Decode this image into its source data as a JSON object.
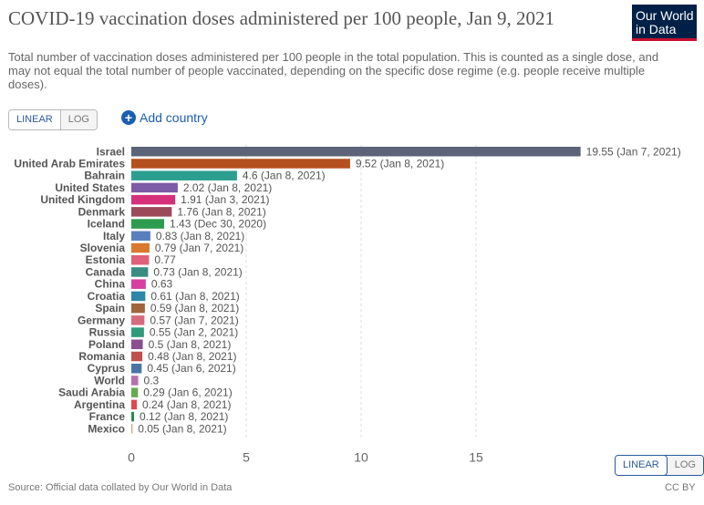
{
  "header": {
    "title": "COVID-19 vaccination doses administered per 100 people, Jan 9, 2021",
    "subtitle": "Total number of vaccination doses administered per 100 people in the total population. This is counted as a single dose, and may not equal the total number of people vaccinated, depending on the specific dose regime (e.g. people receive multiple doses).",
    "logo_line1": "Our World",
    "logo_line2": "in Data"
  },
  "controls": {
    "linear_label": "LINEAR",
    "log_label": "LOG",
    "add_country_label": "Add country",
    "plus_symbol": "+"
  },
  "footer": {
    "source": "Source: Official data collated by Our World in Data",
    "license": "CC BY"
  },
  "chart_data": {
    "type": "bar",
    "orientation": "horizontal",
    "xlim": [
      0,
      20
    ],
    "x_ticks": [
      0,
      5,
      10,
      15
    ],
    "grid": "vertical dashed",
    "bars": [
      {
        "label": "Israel",
        "value": 19.55,
        "annotation": "19.55 (Jan 7, 2021)",
        "color": "#5b6478"
      },
      {
        "label": "United Arab Emirates",
        "value": 9.52,
        "annotation": "9.52 (Jan 8, 2021)",
        "color": "#b5501f"
      },
      {
        "label": "Bahrain",
        "value": 4.6,
        "annotation": "4.6 (Jan 8, 2021)",
        "color": "#2b9e8f"
      },
      {
        "label": "United States",
        "value": 2.02,
        "annotation": "2.02 (Jan 8, 2021)",
        "color": "#7d5ba6"
      },
      {
        "label": "United Kingdom",
        "value": 1.91,
        "annotation": "1.91 (Jan 3, 2021)",
        "color": "#d6307b"
      },
      {
        "label": "Denmark",
        "value": 1.76,
        "annotation": "1.76 (Jan 8, 2021)",
        "color": "#9c4a5a"
      },
      {
        "label": "Iceland",
        "value": 1.43,
        "annotation": "1.43 (Dec 30, 2020)",
        "color": "#2e9b4e"
      },
      {
        "label": "Italy",
        "value": 0.83,
        "annotation": "0.83 (Jan 8, 2021)",
        "color": "#5a7fbf"
      },
      {
        "label": "Slovenia",
        "value": 0.79,
        "annotation": "0.79 (Jan 7, 2021)",
        "color": "#d9782e"
      },
      {
        "label": "Estonia",
        "value": 0.77,
        "annotation": "0.77",
        "color": "#e0607a"
      },
      {
        "label": "Canada",
        "value": 0.73,
        "annotation": "0.73 (Jan 8, 2021)",
        "color": "#3a8c80"
      },
      {
        "label": "China",
        "value": 0.63,
        "annotation": "0.63",
        "color": "#d63fa0"
      },
      {
        "label": "Croatia",
        "value": 0.61,
        "annotation": "0.61 (Jan 8, 2021)",
        "color": "#2e86a8"
      },
      {
        "label": "Spain",
        "value": 0.59,
        "annotation": "0.59 (Jan 8, 2021)",
        "color": "#a0663a"
      },
      {
        "label": "Germany",
        "value": 0.57,
        "annotation": "0.57 (Jan 7, 2021)",
        "color": "#d86b7e"
      },
      {
        "label": "Russia",
        "value": 0.55,
        "annotation": "0.55 (Jan 2, 2021)",
        "color": "#2f9b7a"
      },
      {
        "label": "Poland",
        "value": 0.5,
        "annotation": "0.5 (Jan 8, 2021)",
        "color": "#8a4f8e"
      },
      {
        "label": "Romania",
        "value": 0.48,
        "annotation": "0.48 (Jan 8, 2021)",
        "color": "#c0504d"
      },
      {
        "label": "Cyprus",
        "value": 0.45,
        "annotation": "0.45 (Jan 6, 2021)",
        "color": "#4a74a8"
      },
      {
        "label": "World",
        "value": 0.3,
        "annotation": "0.3",
        "color": "#b86fb0"
      },
      {
        "label": "Saudi Arabia",
        "value": 0.29,
        "annotation": "0.29 (Jan 6, 2021)",
        "color": "#6aa84f"
      },
      {
        "label": "Argentina",
        "value": 0.24,
        "annotation": "0.24 (Jan 8, 2021)",
        "color": "#e0484c"
      },
      {
        "label": "France",
        "value": 0.12,
        "annotation": "0.12 (Jan 8, 2021)",
        "color": "#2d8a4e"
      },
      {
        "label": "Mexico",
        "value": 0.05,
        "annotation": "0.05 (Jan 8, 2021)",
        "color": "#c9a27a"
      }
    ]
  }
}
